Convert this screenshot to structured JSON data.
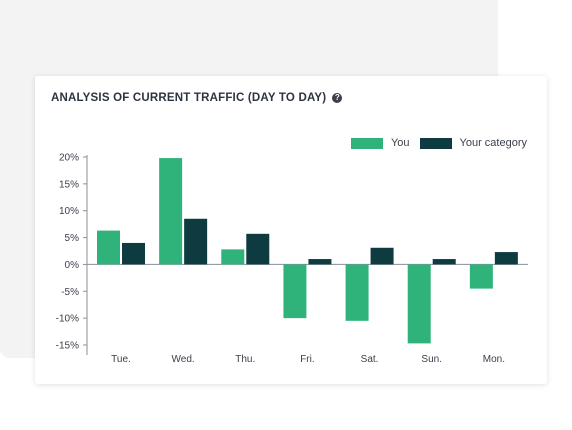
{
  "card": {
    "title": "ANALYSIS OF CURRENT TRAFFIC (DAY TO DAY)",
    "help_icon": "question-circle-icon"
  },
  "colors": {
    "you": "#2fb37a",
    "category": "#0d3b40",
    "axis": "#8a8f98"
  },
  "chart_data": {
    "type": "bar",
    "categories": [
      "Tue.",
      "Wed.",
      "Thu.",
      "Fri.",
      "Sat.",
      "Sun.",
      "Mon."
    ],
    "series": [
      {
        "name": "You",
        "values": [
          6.3,
          19.8,
          2.8,
          -10,
          -10.5,
          -14.7,
          -4.5
        ]
      },
      {
        "name": "Your category",
        "values": [
          4,
          8.5,
          5.7,
          1,
          3.1,
          1,
          2.3
        ]
      }
    ],
    "y_ticks": [
      "20%",
      "15%",
      "10%",
      "5%",
      "0%",
      "-5%",
      "-10%",
      "-15%"
    ],
    "ylim": [
      -15,
      20
    ],
    "legend_position": "top-right",
    "grid": false
  }
}
